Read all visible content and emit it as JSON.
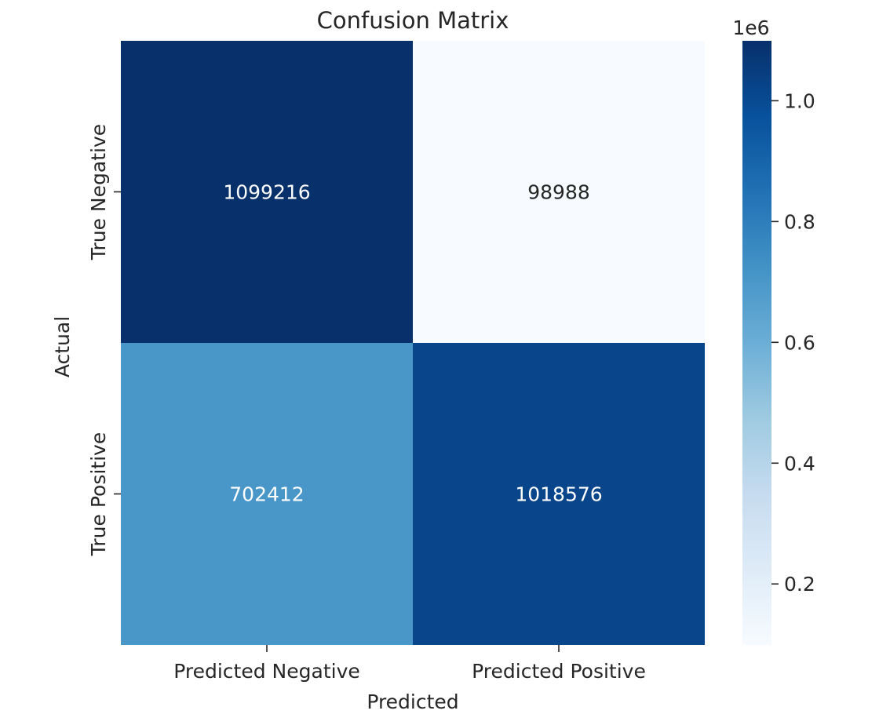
{
  "chart_data": {
    "type": "heatmap",
    "title": "Confusion Matrix",
    "xlabel": "Predicted",
    "ylabel": "Actual",
    "x_categories": [
      "Predicted Negative",
      "Predicted Positive"
    ],
    "y_categories": [
      "True Negative",
      "True Positive"
    ],
    "values": [
      [
        1099216,
        98988
      ],
      [
        702412,
        1018576
      ]
    ],
    "colormap": "Blues",
    "colorbar": {
      "range": [
        98988,
        1099216
      ],
      "multiplier_label": "1e6",
      "ticks": [
        0.2,
        0.4,
        0.6,
        0.8,
        1.0
      ],
      "tick_labels": [
        "0.2",
        "0.4",
        "0.6",
        "0.8",
        "1.0"
      ],
      "scale": 1000000
    },
    "colors": {
      "low": "#f7fbff",
      "high": "#08306b",
      "text_dark": "#262626",
      "text_light": "#ffffff"
    }
  }
}
